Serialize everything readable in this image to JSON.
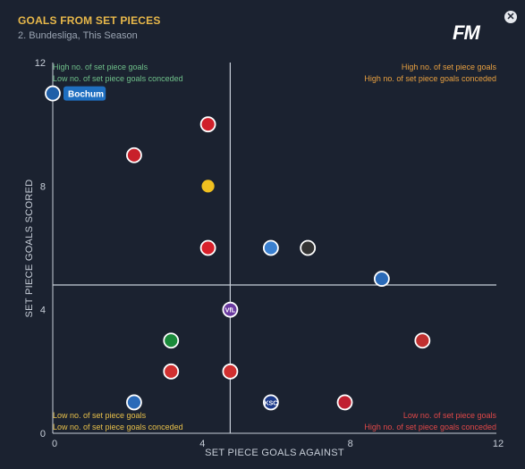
{
  "header": {
    "title": "GOALS FROM SET PIECES",
    "subtitle": "2. Bundesliga, This Season",
    "logo": "FM",
    "close_icon": "close-icon"
  },
  "quadrants": {
    "top_left": [
      "High no. of set piece goals",
      "Low no. of set piece goals conceded"
    ],
    "top_right": [
      "High no. of set piece goals",
      "High no. of set piece goals conceded"
    ],
    "bottom_left": [
      "Low no. of set piece goals",
      "Low no. of set piece goals conceded"
    ],
    "bottom_right": [
      "Low no. of set piece goals",
      "High no. of set piece goals conceded"
    ]
  },
  "colors": {
    "axis": "#c7ced8",
    "average_line": "#c7ced8",
    "top_left": "#6fc08a",
    "top_right": "#e8a040",
    "bottom_left": "#e8c04a",
    "bottom_right": "#e04848",
    "highlight": "#1f6fc0"
  },
  "chart_data": {
    "type": "scatter",
    "xlabel": "SET PIECE GOALS AGAINST",
    "ylabel": "SET PIECE GOALS SCORED",
    "xlim": [
      0,
      12
    ],
    "ylim": [
      0,
      12
    ],
    "xticks": [
      "0",
      "4",
      "8",
      "12"
    ],
    "yticks": [
      "0",
      "4",
      "8",
      "12"
    ],
    "average": {
      "x": 4.8,
      "y": 4.8
    },
    "grid": false,
    "points": [
      {
        "x": 0,
        "y": 11,
        "label": "Bochum",
        "highlight": true,
        "fill": "#1f5fa8",
        "stroke": "#ffffff",
        "text": ""
      },
      {
        "x": 4.2,
        "y": 10,
        "fill": "#d0202a",
        "stroke": "#ffffff",
        "text": ""
      },
      {
        "x": 2.2,
        "y": 9,
        "fill": "#c8202a",
        "stroke": "#ffffff",
        "text": ""
      },
      {
        "x": 4.2,
        "y": 8,
        "fill": "#f0c020",
        "stroke": "#1b2230",
        "text": ""
      },
      {
        "x": 4.2,
        "y": 6,
        "fill": "#d8202a",
        "stroke": "#ffffff",
        "text": ""
      },
      {
        "x": 5.9,
        "y": 6,
        "fill": "#3a80d0",
        "stroke": "#ffffff",
        "text": ""
      },
      {
        "x": 6.9,
        "y": 6,
        "fill": "#333333",
        "stroke": "#ffffff",
        "text": ""
      },
      {
        "x": 8.9,
        "y": 5,
        "fill": "#2a6ab8",
        "stroke": "#ffffff",
        "text": ""
      },
      {
        "x": 4.8,
        "y": 4,
        "fill": "#6a3aa0",
        "stroke": "#ffffff",
        "text": "VfL"
      },
      {
        "x": 3.2,
        "y": 3,
        "fill": "#1a8a3a",
        "stroke": "#ffffff",
        "text": ""
      },
      {
        "x": 10,
        "y": 3,
        "fill": "#c03030",
        "stroke": "#ffffff",
        "text": ""
      },
      {
        "x": 3.2,
        "y": 2,
        "fill": "#d03030",
        "stroke": "#ffffff",
        "text": ""
      },
      {
        "x": 4.8,
        "y": 2,
        "fill": "#d03030",
        "stroke": "#ffffff",
        "text": ""
      },
      {
        "x": 2.2,
        "y": 1,
        "fill": "#2a6ab8",
        "stroke": "#ffffff",
        "text": ""
      },
      {
        "x": 5.9,
        "y": 1,
        "fill": "#1c3a8a",
        "stroke": "#ffffff",
        "text": "KSC"
      },
      {
        "x": 7.9,
        "y": 1,
        "fill": "#c02030",
        "stroke": "#ffffff",
        "text": ""
      }
    ]
  }
}
